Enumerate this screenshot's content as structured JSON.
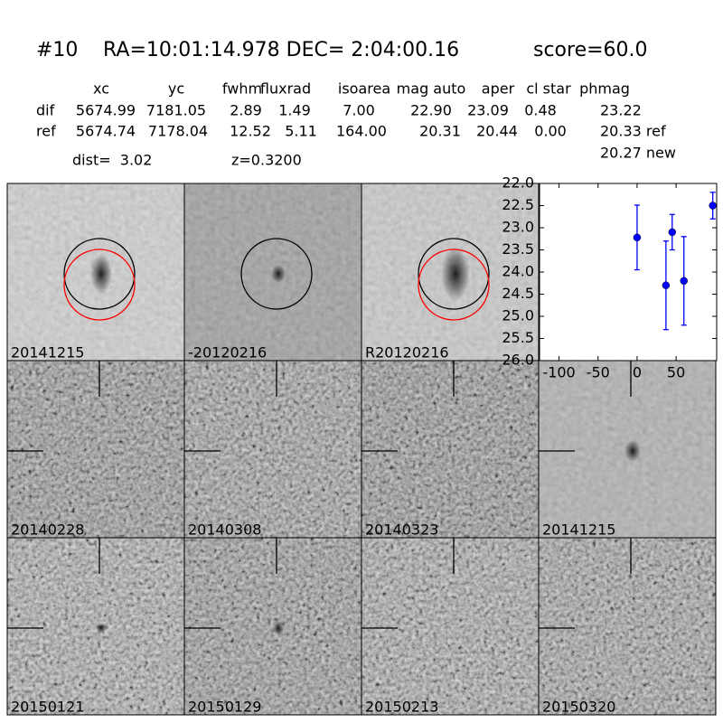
{
  "header": {
    "id": "#10",
    "coords": "RA=10:01:14.978 DEC= 2:04:00.16",
    "score": "score=60.0"
  },
  "table": {
    "columns": [
      "xc",
      "yc",
      "fwhm",
      "fluxrad",
      "isoarea",
      "mag auto",
      "aper",
      "cl star",
      "phmag"
    ],
    "rows": [
      [
        "dif",
        "5674.99",
        "7181.05",
        "2.89",
        "1.49",
        "7.00",
        "22.90",
        "23.09",
        "0.48",
        "23.22"
      ],
      [
        "ref",
        "5674.74",
        "7178.04",
        "12.52",
        "5.11",
        "164.00",
        "20.31",
        "20.44",
        "0.00",
        "20.33 ref"
      ]
    ],
    "extra": "20.27 new"
  },
  "info": {
    "dist": "dist=  3.02",
    "z": "z=0.3200"
  },
  "panels": [
    {
      "label": "20141215"
    },
    {
      "label": "-20120216"
    },
    {
      "label": "R20120216"
    },
    {
      "label": "20140228"
    },
    {
      "label": "20140308"
    },
    {
      "label": "20140323"
    },
    {
      "label": "20141215",
      "color": "#ff0000"
    },
    {
      "label": "20150121"
    },
    {
      "label": "20150129"
    },
    {
      "label": "20150213"
    },
    {
      "label": "20150320"
    }
  ],
  "chart_data": {
    "type": "errorbar",
    "x": [
      0,
      37,
      45,
      60,
      97
    ],
    "values": [
      23.22,
      24.3,
      23.1,
      24.2,
      22.5
    ],
    "errors": [
      0.73,
      1.0,
      0.4,
      1.0,
      0.3
    ],
    "color": "#0000ff",
    "xlim": [
      -125,
      102
    ],
    "xticks": [
      -100,
      -50,
      0,
      50
    ],
    "ylim": [
      26,
      22
    ],
    "yticks": [
      {
        "value": 22.0,
        "label": "22.0"
      },
      {
        "value": 22.5,
        "label": "22.5"
      },
      {
        "value": 23.0,
        "label": "23.0"
      },
      {
        "value": 23.5,
        "label": "23.5"
      },
      {
        "value": 24.0,
        "label": "24.0"
      },
      {
        "value": 24.5,
        "label": "24.5"
      },
      {
        "value": 25.0,
        "label": "25.0"
      },
      {
        "value": 25.5,
        "label": "25.5"
      },
      {
        "value": 26.0,
        "label": "26.0"
      }
    ]
  }
}
